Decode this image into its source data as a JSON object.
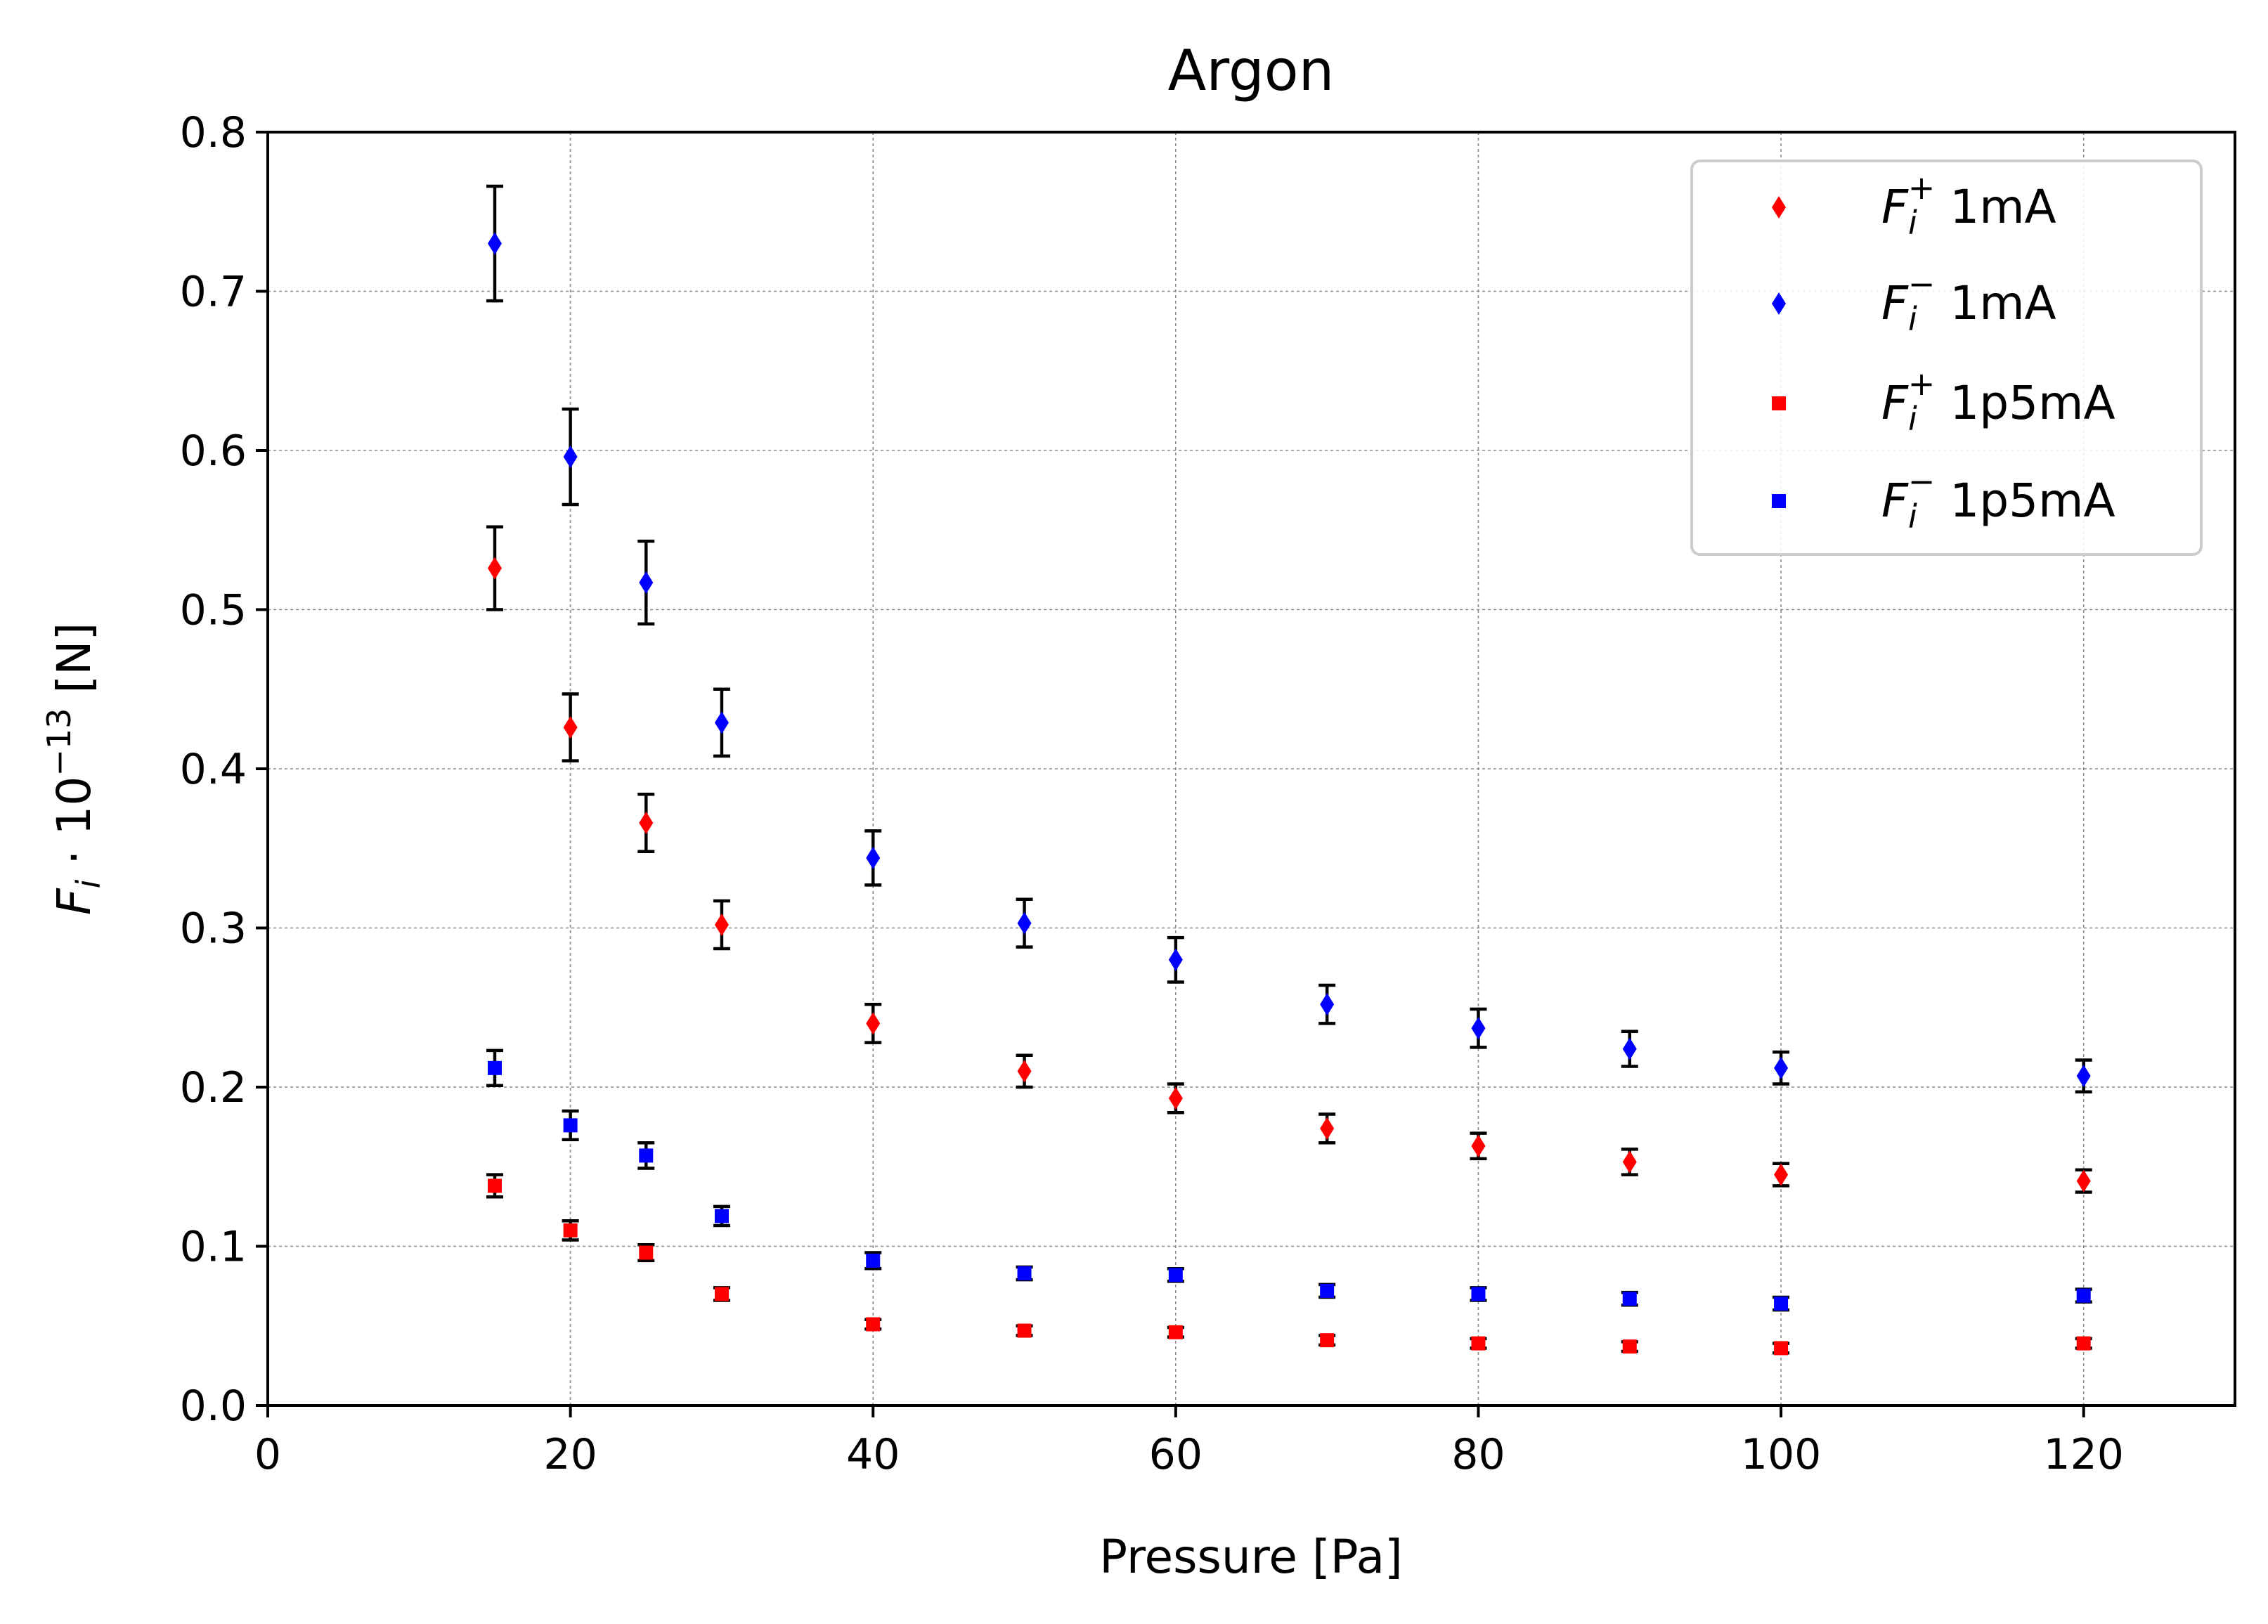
{
  "chart_data": {
    "type": "scatter",
    "title": "Argon",
    "xlabel": "Pressure [Pa]",
    "ylabel_parts": {
      "F": "F",
      "i": "i",
      "mid": " · 10",
      "exp": "−13",
      "unit": " [N]"
    },
    "xlim": [
      0,
      130
    ],
    "ylim": [
      0,
      0.8
    ],
    "xticks": [
      0,
      20,
      40,
      60,
      80,
      100,
      120
    ],
    "xtick_labels": [
      "0",
      "20",
      "40",
      "60",
      "80",
      "100",
      "120"
    ],
    "yticks": [
      0,
      0.1,
      0.2,
      0.3,
      0.4,
      0.5,
      0.6,
      0.7,
      0.8
    ],
    "ytick_labels": [
      "0.0",
      "0.1",
      "0.2",
      "0.3",
      "0.4",
      "0.5",
      "0.6",
      "0.7",
      "0.8"
    ],
    "grid": true,
    "legend_position": "top-right",
    "x": [
      15,
      20,
      25,
      30,
      40,
      50,
      60,
      70,
      80,
      90,
      100,
      120
    ],
    "series": [
      {
        "name": "F_i^+ 1mA",
        "legend": {
          "F": "F",
          "sub": "i",
          "sup": "+",
          "rest": " 1mA"
        },
        "color": "#ff0000",
        "marker": "diamond",
        "y": [
          0.526,
          0.426,
          0.366,
          0.302,
          0.24,
          0.21,
          0.193,
          0.174,
          0.163,
          0.153,
          0.145,
          0.141
        ],
        "err": [
          0.026,
          0.021,
          0.018,
          0.015,
          0.012,
          0.01,
          0.009,
          0.009,
          0.008,
          0.008,
          0.007,
          0.007
        ]
      },
      {
        "name": "F_i^- 1mA",
        "legend": {
          "F": "F",
          "sub": "i",
          "sup": "−",
          "rest": " 1mA"
        },
        "color": "#0000ff",
        "marker": "diamond",
        "y": [
          0.73,
          0.596,
          0.517,
          0.429,
          0.344,
          0.303,
          0.28,
          0.252,
          0.237,
          0.224,
          0.212,
          0.207
        ],
        "err": [
          0.036,
          0.03,
          0.026,
          0.021,
          0.017,
          0.015,
          0.014,
          0.012,
          0.012,
          0.011,
          0.01,
          0.01
        ]
      },
      {
        "name": "F_i^+ 1p5mA",
        "legend": {
          "F": "F",
          "sub": "i",
          "sup": "+",
          "rest": " 1p5mA"
        },
        "color": "#ff0000",
        "marker": "square",
        "y": [
          0.138,
          0.11,
          0.096,
          0.07,
          0.051,
          0.047,
          0.046,
          0.041,
          0.039,
          0.037,
          0.036,
          0.039
        ],
        "err": [
          0.007,
          0.006,
          0.005,
          0.004,
          0.003,
          0.003,
          0.003,
          0.003,
          0.003,
          0.003,
          0.003,
          0.003
        ]
      },
      {
        "name": "F_i^- 1p5mA",
        "legend": {
          "F": "F",
          "sub": "i",
          "sup": "−",
          "rest": " 1p5mA"
        },
        "color": "#0000ff",
        "marker": "square",
        "y": [
          0.212,
          0.176,
          0.157,
          0.119,
          0.091,
          0.083,
          0.082,
          0.072,
          0.07,
          0.067,
          0.064,
          0.069
        ],
        "err": [
          0.011,
          0.009,
          0.008,
          0.006,
          0.005,
          0.004,
          0.004,
          0.004,
          0.004,
          0.004,
          0.004,
          0.004
        ]
      }
    ]
  }
}
